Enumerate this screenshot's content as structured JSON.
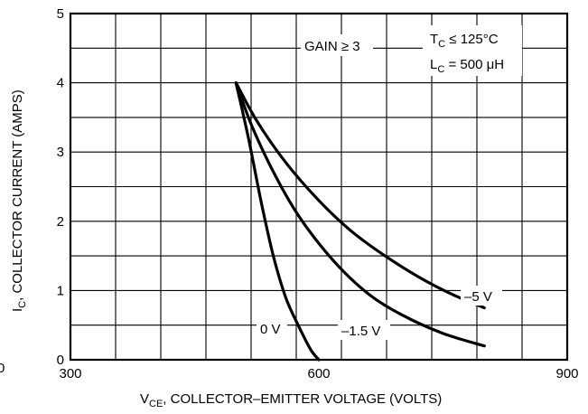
{
  "chart_data": {
    "type": "line",
    "xlabel_main": "V",
    "xlabel_sub": "CE",
    "xlabel_rest": ", COLLECTOR–EMITTER VOLTAGE (VOLTS)",
    "ylabel_main": "I",
    "ylabel_sub": "C",
    "ylabel_rest": ", COLLECTOR CURRENT (AMPS)",
    "xlim": [
      300,
      900
    ],
    "ylim": [
      0,
      5
    ],
    "x_ticks": [
      {
        "value": 300,
        "label": "300"
      },
      {
        "value": 600,
        "label": "600"
      },
      {
        "value": 900,
        "label": "900"
      }
    ],
    "y_ticks": [
      {
        "value": 0,
        "label": "0"
      },
      {
        "value": 1,
        "label": "1"
      },
      {
        "value": 2,
        "label": "2"
      },
      {
        "value": 3,
        "label": "3"
      },
      {
        "value": 4,
        "label": "4"
      },
      {
        "value": 5,
        "label": "5"
      }
    ],
    "grid": true,
    "series": [
      {
        "name": "0 V",
        "points": [
          [
            500,
            4.0
          ],
          [
            515,
            3.2
          ],
          [
            530,
            2.3
          ],
          [
            545,
            1.5
          ],
          [
            560,
            0.9
          ],
          [
            575,
            0.5
          ],
          [
            590,
            0.15
          ],
          [
            600,
            0.0
          ]
        ]
      },
      {
        "name": "-1.5 V",
        "points": [
          [
            500,
            4.0
          ],
          [
            520,
            3.35
          ],
          [
            550,
            2.6
          ],
          [
            580,
            2.0
          ],
          [
            620,
            1.4
          ],
          [
            660,
            0.95
          ],
          [
            700,
            0.65
          ],
          [
            750,
            0.38
          ],
          [
            800,
            0.2
          ]
        ]
      },
      {
        "name": "-5 V",
        "points": [
          [
            500,
            4.0
          ],
          [
            525,
            3.45
          ],
          [
            560,
            2.85
          ],
          [
            600,
            2.3
          ],
          [
            640,
            1.85
          ],
          [
            680,
            1.5
          ],
          [
            720,
            1.2
          ],
          [
            760,
            0.95
          ],
          [
            800,
            0.75
          ]
        ]
      }
    ],
    "annotations": {
      "gain": "GAIN ≥ 3",
      "tc_main": "T",
      "tc_sub": "C",
      "tc_rest": " ≤ 125°C",
      "lc_main": "L",
      "lc_sub": "C",
      "lc_rest": " = 500 μH",
      "label_0v": "0 V",
      "label_15v": "–1.5 V",
      "label_5v": "–5 V"
    },
    "edge_mark": "0"
  }
}
